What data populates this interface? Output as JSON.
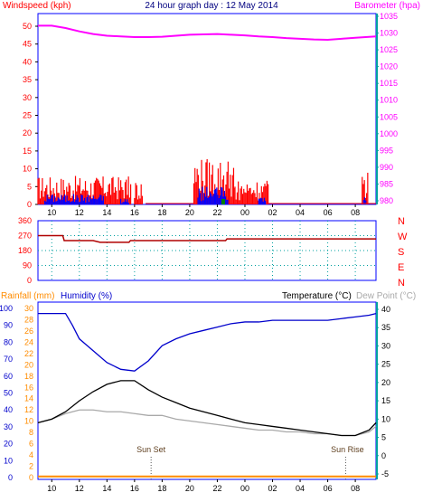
{
  "title": "24 hour graph day : 12 May 2014",
  "colors": {
    "wind": "#ff0000",
    "gust": "#0000ff",
    "dir": "#b00000",
    "baro": "#ff00ff",
    "rain": "#ff8c00",
    "humidity": "#0000cc",
    "temp": "#000000",
    "dew": "#a9a9a9",
    "axis_cyan": "#00a0a0",
    "plot_border": "#0000ff"
  },
  "x_labels": [
    "10",
    "12",
    "14",
    "16",
    "18",
    "20",
    "22",
    "00",
    "02",
    "04",
    "06",
    "08"
  ],
  "panel1": {
    "left_label": "Windspeed (kph)",
    "right_label": "Barometer (hpa)",
    "left_ticks": [
      "0",
      "5",
      "10",
      "15",
      "20",
      "25",
      "30",
      "35",
      "40",
      "45",
      "50"
    ],
    "right_ticks": [
      "980",
      "985",
      "990",
      "995",
      "1000",
      "1005",
      "1010",
      "1015",
      "1020",
      "1025",
      "1030",
      "1035"
    ]
  },
  "panel2": {
    "left_ticks": [
      "0",
      "90",
      "180",
      "270",
      "360"
    ],
    "compass": [
      "N",
      "W",
      "S",
      "E",
      "N"
    ]
  },
  "panel3": {
    "rain_label": "Rainfall (mm)",
    "humidity_label": "Humidity (%)",
    "temp_label": "Temperature (°C)",
    "dew_label": "Dew Point (°C)",
    "humidity_ticks": [
      "0",
      "10",
      "20",
      "30",
      "40",
      "50",
      "60",
      "70",
      "80",
      "90",
      "100"
    ],
    "rain_ticks": [
      "0",
      "2",
      "4",
      "6",
      "8",
      "10",
      "12",
      "14",
      "16",
      "18",
      "20",
      "22",
      "24",
      "26",
      "28",
      "30"
    ],
    "temp_ticks": [
      "-5",
      "0",
      "5",
      "10",
      "15",
      "20",
      "25",
      "30",
      "35",
      "40"
    ],
    "sunset_label": "Sun Set",
    "sunrise_label": "Sun Rise"
  },
  "chart_data": [
    {
      "type": "line",
      "name": "wind-baro",
      "x_unit": "hour",
      "x_range": [
        9,
        33.5
      ],
      "ylim_left": [
        0,
        50
      ],
      "ylim_right": [
        980,
        1035
      ],
      "barometer": {
        "x": [
          9,
          10,
          11,
          12,
          13,
          14,
          15,
          16,
          17,
          18,
          19,
          20,
          21,
          22,
          23,
          24,
          25,
          26,
          27,
          28,
          29,
          30,
          31,
          32,
          33.5
        ],
        "y": [
          1032.2,
          1032.2,
          1031.5,
          1030.5,
          1029.7,
          1029.2,
          1029.0,
          1028.8,
          1028.8,
          1028.9,
          1029.2,
          1029.5,
          1029.6,
          1029.7,
          1029.5,
          1029.3,
          1029.0,
          1028.8,
          1028.5,
          1028.3,
          1028.1,
          1028.0,
          1028.3,
          1028.6,
          1029.0
        ]
      },
      "wind_segments": [
        [
          9,
          15.8,
          8
        ],
        [
          16,
          16.6,
          7
        ],
        [
          20.3,
          23.2,
          13
        ],
        [
          23.2,
          25.7,
          7
        ],
        [
          32.5,
          32.9,
          9
        ]
      ],
      "gust_segments": [
        [
          9.5,
          13.8,
          3
        ],
        [
          15,
          15.6,
          2
        ],
        [
          20.6,
          22.8,
          5
        ],
        [
          25,
          25.5,
          2
        ],
        [
          32.6,
          32.8,
          3
        ]
      ],
      "wind_baseline": [
        25.7,
        33.5
      ]
    },
    {
      "type": "line",
      "name": "wind-direction",
      "x_unit": "hour",
      "ylim": [
        0,
        360
      ],
      "x": [
        9,
        10.8,
        10.9,
        13,
        13.5,
        15.6,
        15.7,
        22.6,
        22.7,
        33.5
      ],
      "y": [
        270,
        270,
        240,
        240,
        230,
        230,
        240,
        240,
        250,
        250
      ]
    },
    {
      "type": "line",
      "name": "temp-humidity-rain",
      "x_unit": "hour",
      "ylim_humidity": [
        0,
        100
      ],
      "ylim_rain": [
        0,
        30
      ],
      "ylim_temp": [
        -5,
        40
      ],
      "humidity": {
        "x": [
          9,
          10,
          11,
          11.5,
          12,
          13,
          14,
          15,
          16,
          17,
          18,
          19,
          20,
          21,
          22,
          23,
          24,
          25,
          26,
          27,
          28,
          29,
          30,
          31,
          32,
          33,
          33.5
        ],
        "y": [
          97,
          97,
          97,
          90,
          82,
          75,
          68,
          64,
          63,
          69,
          78,
          82,
          85,
          87,
          89,
          91,
          92,
          92,
          93,
          93,
          93,
          93,
          93,
          94,
          95,
          96,
          97
        ]
      },
      "temperature": {
        "x": [
          9,
          10,
          11,
          12,
          13,
          14,
          15,
          16,
          17,
          18,
          19,
          20,
          21,
          22,
          23,
          24,
          25,
          26,
          27,
          28,
          29,
          30,
          31,
          32,
          33,
          33.5
        ],
        "y": [
          9,
          10,
          12,
          15,
          17.5,
          19.5,
          20.5,
          20.5,
          18,
          16,
          14.5,
          13,
          12,
          11,
          10,
          9,
          8.5,
          8,
          7.5,
          7,
          6.5,
          6,
          5.5,
          5.5,
          7,
          9
        ]
      },
      "dew_point": {
        "x": [
          9,
          10,
          11,
          12,
          13,
          14,
          15,
          16,
          17,
          18,
          19,
          20,
          21,
          22,
          23,
          24,
          25,
          26,
          27,
          28,
          29,
          30,
          31,
          32,
          33,
          33.5
        ],
        "y": [
          9,
          10,
          11.5,
          12.5,
          12.5,
          12,
          12,
          11.5,
          11,
          11,
          10,
          9.5,
          9,
          8.5,
          8,
          7.5,
          7,
          7,
          6.5,
          6.5,
          6,
          6,
          5.5,
          5.5,
          6.5,
          8
        ]
      },
      "rainfall": {
        "x": [
          9,
          33.5
        ],
        "y": [
          0.2,
          0.2
        ]
      },
      "sunset_hour": 17.2,
      "sunrise_hour": 31.3
    }
  ]
}
